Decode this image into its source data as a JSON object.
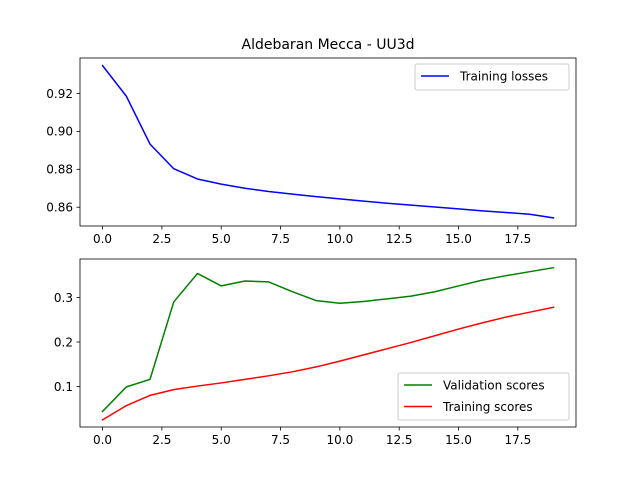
{
  "chart_data": [
    {
      "type": "line",
      "title": "Aldebaran Mecca - UU3d",
      "xlabel": "",
      "ylabel": "",
      "xlim": [
        -0.95,
        19.95
      ],
      "ylim": [
        0.8501,
        0.9387
      ],
      "xticks": [
        0,
        2.5,
        5,
        7.5,
        10,
        12.5,
        15,
        17.5
      ],
      "xtick_labels": [
        "0.0",
        "2.5",
        "5.0",
        "7.5",
        "10.0",
        "12.5",
        "15.0",
        "17.5"
      ],
      "yticks": [
        0.86,
        0.88,
        0.9,
        0.92
      ],
      "ytick_labels": [
        "0.86",
        "0.88",
        "0.90",
        "0.92"
      ],
      "grid": false,
      "legend": "upper right",
      "x": [
        0,
        1,
        2,
        3,
        4,
        5,
        6,
        7,
        8,
        9,
        10,
        11,
        12,
        13,
        14,
        15,
        16,
        17,
        18,
        19
      ],
      "series": [
        {
          "name": "Training losses",
          "color": "#0000ff",
          "values": [
            0.9347,
            0.9186,
            0.8933,
            0.8803,
            0.8749,
            0.8722,
            0.87,
            0.8683,
            0.8669,
            0.8656,
            0.8644,
            0.8632,
            0.8621,
            0.8611,
            0.8601,
            0.8591,
            0.8581,
            0.8572,
            0.8563,
            0.8544
          ]
        }
      ]
    },
    {
      "type": "line",
      "title": "",
      "xlabel": "",
      "ylabel": "",
      "xlim": [
        -0.95,
        19.95
      ],
      "ylim": [
        0.009,
        0.3865
      ],
      "xticks": [
        0,
        2.5,
        5,
        7.5,
        10,
        12.5,
        15,
        17.5
      ],
      "xtick_labels": [
        "0.0",
        "2.5",
        "5.0",
        "7.5",
        "10.0",
        "12.5",
        "15.0",
        "17.5"
      ],
      "yticks": [
        0.1,
        0.2,
        0.3
      ],
      "ytick_labels": [
        "0.1",
        "0.2",
        "0.3"
      ],
      "grid": false,
      "legend": "lower right",
      "x": [
        0,
        1,
        2,
        3,
        4,
        5,
        6,
        7,
        8,
        9,
        10,
        11,
        12,
        13,
        14,
        15,
        16,
        17,
        18,
        19
      ],
      "series": [
        {
          "name": "Validation scores",
          "color": "#008000",
          "values": [
            0.044,
            0.099,
            0.116,
            0.29,
            0.354,
            0.326,
            0.337,
            0.335,
            0.313,
            0.293,
            0.287,
            0.291,
            0.297,
            0.303,
            0.313,
            0.326,
            0.339,
            0.349,
            0.358,
            0.367
          ]
        },
        {
          "name": "Training scores",
          "color": "#ff0000",
          "values": [
            0.025,
            0.057,
            0.08,
            0.093,
            0.101,
            0.108,
            0.116,
            0.124,
            0.133,
            0.144,
            0.157,
            0.171,
            0.185,
            0.199,
            0.214,
            0.229,
            0.243,
            0.256,
            0.267,
            0.278
          ]
        }
      ]
    }
  ]
}
